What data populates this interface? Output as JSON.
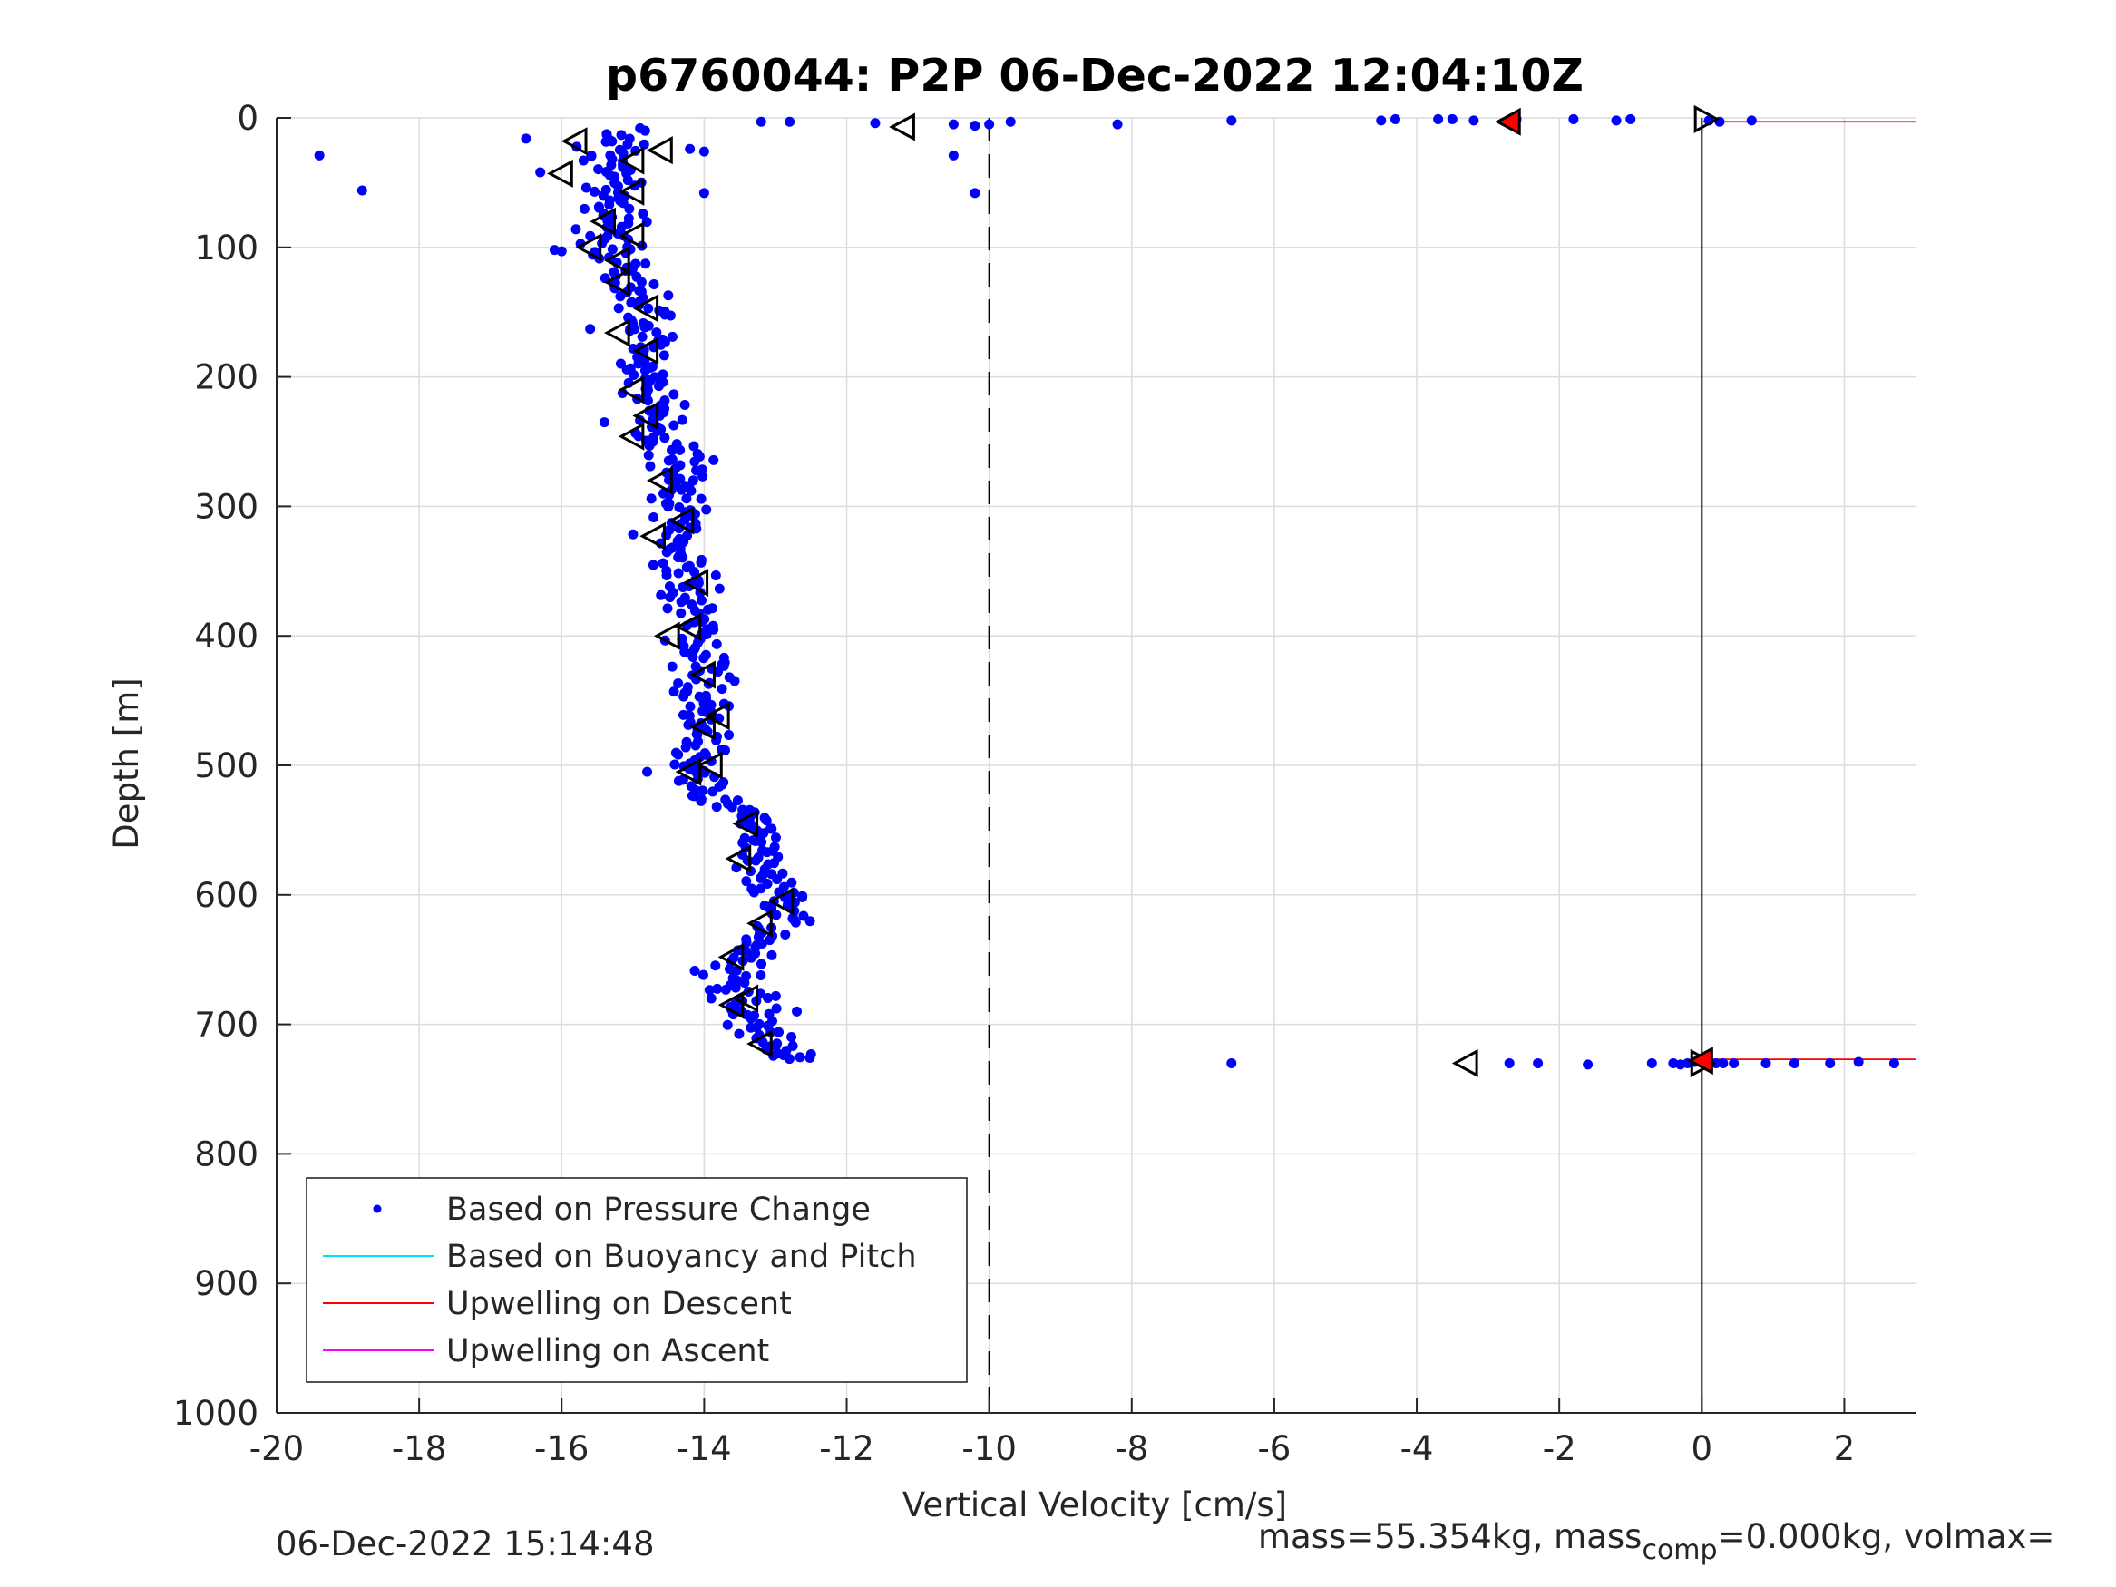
{
  "chart_data": {
    "type": "scatter",
    "title": "p6760044: P2P 06-Dec-2022 12:04:10Z",
    "xlabel": "Vertical Velocity [cm/s]",
    "ylabel": "Depth [m]",
    "xlim": [
      -20,
      3
    ],
    "ylim": [
      0,
      1000
    ],
    "y_reversed": true,
    "grid": true,
    "x_ticks": [
      -20,
      -18,
      -16,
      -14,
      -12,
      -10,
      -8,
      -6,
      -4,
      -2,
      0,
      2
    ],
    "y_ticks": [
      0,
      100,
      200,
      300,
      400,
      500,
      600,
      700,
      800,
      900,
      1000
    ],
    "legend_position": "bottom-left",
    "legend": [
      {
        "label": "Based on Pressure Change",
        "style": "dot",
        "color": "#0000ff"
      },
      {
        "label": "Based on Buoyancy and Pitch",
        "style": "line",
        "color": "#00e5ff"
      },
      {
        "label": "Upwelling on Descent",
        "style": "line",
        "color": "#ff0000"
      },
      {
        "label": "Upwelling on Ascent",
        "style": "line",
        "color": "#ff00ff"
      }
    ],
    "reference_lines": [
      {
        "x": -10,
        "style": "dashed",
        "color": "#000000"
      },
      {
        "x": 0,
        "style": "solid",
        "color": "#000000"
      }
    ],
    "upwelling_on_descent": [
      {
        "depth": 3,
        "x_from": 0,
        "x_to": 3
      },
      {
        "depth": 727,
        "x_from": 0,
        "x_to": 3
      }
    ],
    "pressure_profile": {
      "name": "Based on Pressure Change",
      "color": "#0000ff",
      "anchors": [
        [
          10,
          -15.1
        ],
        [
          20,
          -15.2
        ],
        [
          40,
          -15.3
        ],
        [
          60,
          -15.2
        ],
        [
          80,
          -15.3
        ],
        [
          100,
          -15.2
        ],
        [
          120,
          -15.1
        ],
        [
          140,
          -14.8
        ],
        [
          160,
          -14.8
        ],
        [
          180,
          -14.7
        ],
        [
          200,
          -14.8
        ],
        [
          220,
          -14.8
        ],
        [
          240,
          -14.8
        ],
        [
          260,
          -14.3
        ],
        [
          280,
          -14.4
        ],
        [
          300,
          -14.3
        ],
        [
          320,
          -14.5
        ],
        [
          340,
          -14.5
        ],
        [
          360,
          -14.2
        ],
        [
          380,
          -14.1
        ],
        [
          400,
          -14.1
        ],
        [
          420,
          -13.9
        ],
        [
          440,
          -14.0
        ],
        [
          460,
          -14.0
        ],
        [
          480,
          -14.0
        ],
        [
          500,
          -14.1
        ],
        [
          520,
          -13.9
        ],
        [
          540,
          -13.3
        ],
        [
          560,
          -13.4
        ],
        [
          580,
          -13.1
        ],
        [
          600,
          -12.9
        ],
        [
          620,
          -13.0
        ],
        [
          640,
          -13.4
        ],
        [
          660,
          -13.6
        ],
        [
          680,
          -13.4
        ],
        [
          700,
          -13.3
        ],
        [
          715,
          -13.0
        ],
        [
          728,
          -12.8
        ]
      ],
      "scatter_width": 0.3,
      "sample_count": 560,
      "outliers": [
        {
          "x": -19.4,
          "y": 29
        },
        {
          "x": -18.8,
          "y": 56
        },
        {
          "x": -16.5,
          "y": 16
        },
        {
          "x": -16.3,
          "y": 42
        },
        {
          "x": -16.1,
          "y": 102
        },
        {
          "x": -16.0,
          "y": 103
        },
        {
          "x": -15.8,
          "y": 86
        },
        {
          "x": -15.6,
          "y": 163
        },
        {
          "x": -15.4,
          "y": 235
        },
        {
          "x": -14.8,
          "y": 505
        },
        {
          "x": -14.0,
          "y": 58
        },
        {
          "x": -13.9,
          "y": 680
        },
        {
          "x": -13.3,
          "y": 598
        },
        {
          "x": -12.7,
          "y": 690
        },
        {
          "x": -12.5,
          "y": 723
        },
        {
          "x": -14.9,
          "y": 8
        },
        {
          "x": -14.2,
          "y": 24
        },
        {
          "x": -14.0,
          "y": 26
        },
        {
          "x": -10.5,
          "y": 29
        },
        {
          "x": -10.2,
          "y": 58
        }
      ],
      "surface_points": [
        {
          "x": -13.2,
          "y": 3
        },
        {
          "x": -12.8,
          "y": 3
        },
        {
          "x": -11.6,
          "y": 4
        },
        {
          "x": -10.5,
          "y": 5
        },
        {
          "x": -10.2,
          "y": 6
        },
        {
          "x": -10.0,
          "y": 5
        },
        {
          "x": -9.7,
          "y": 3
        },
        {
          "x": -8.2,
          "y": 5
        },
        {
          "x": -6.6,
          "y": 2
        },
        {
          "x": -4.5,
          "y": 2
        },
        {
          "x": -4.3,
          "y": 1
        },
        {
          "x": -3.7,
          "y": 1
        },
        {
          "x": -3.5,
          "y": 1
        },
        {
          "x": -3.2,
          "y": 2
        },
        {
          "x": -2.6,
          "y": 1
        },
        {
          "x": -1.8,
          "y": 1
        },
        {
          "x": -1.2,
          "y": 2
        },
        {
          "x": -1.0,
          "y": 1
        },
        {
          "x": 0.1,
          "y": 2
        },
        {
          "x": 0.25,
          "y": 3
        },
        {
          "x": 0.7,
          "y": 2
        }
      ],
      "bottom_points": [
        {
          "x": -6.6,
          "y": 730
        },
        {
          "x": -2.7,
          "y": 730
        },
        {
          "x": -2.3,
          "y": 730
        },
        {
          "x": -1.6,
          "y": 731
        },
        {
          "x": -0.7,
          "y": 730
        },
        {
          "x": -0.4,
          "y": 730
        },
        {
          "x": -0.3,
          "y": 731
        },
        {
          "x": -0.2,
          "y": 730
        },
        {
          "x": -0.1,
          "y": 729
        },
        {
          "x": 0.1,
          "y": 731
        },
        {
          "x": 0.2,
          "y": 730
        },
        {
          "x": 0.3,
          "y": 730
        },
        {
          "x": 0.45,
          "y": 730
        },
        {
          "x": 0.9,
          "y": 730
        },
        {
          "x": 1.3,
          "y": 730
        },
        {
          "x": 1.8,
          "y": 730
        },
        {
          "x": 2.2,
          "y": 729
        },
        {
          "x": 2.7,
          "y": 730
        }
      ]
    },
    "descent_markers": [
      {
        "x": -15.8,
        "y": 18
      },
      {
        "x": -14.6,
        "y": 25
      },
      {
        "x": -15.0,
        "y": 33
      },
      {
        "x": -16.0,
        "y": 43
      },
      {
        "x": -15.0,
        "y": 57
      },
      {
        "x": -15.4,
        "y": 80
      },
      {
        "x": -15.0,
        "y": 91
      },
      {
        "x": -15.6,
        "y": 100
      },
      {
        "x": -15.2,
        "y": 110
      },
      {
        "x": -15.2,
        "y": 127
      },
      {
        "x": -14.8,
        "y": 147
      },
      {
        "x": -15.2,
        "y": 166
      },
      {
        "x": -14.8,
        "y": 180
      },
      {
        "x": -15.0,
        "y": 210
      },
      {
        "x": -14.8,
        "y": 230
      },
      {
        "x": -15.0,
        "y": 246
      },
      {
        "x": -14.6,
        "y": 280
      },
      {
        "x": -14.3,
        "y": 311
      },
      {
        "x": -14.7,
        "y": 323
      },
      {
        "x": -14.1,
        "y": 359
      },
      {
        "x": -14.2,
        "y": 393
      },
      {
        "x": -14.5,
        "y": 400
      },
      {
        "x": -14.0,
        "y": 430
      },
      {
        "x": -14.0,
        "y": 470
      },
      {
        "x": -13.8,
        "y": 462
      },
      {
        "x": -14.2,
        "y": 505
      },
      {
        "x": -13.9,
        "y": 500
      },
      {
        "x": -13.4,
        "y": 545
      },
      {
        "x": -13.5,
        "y": 572
      },
      {
        "x": -12.9,
        "y": 605
      },
      {
        "x": -13.2,
        "y": 622
      },
      {
        "x": -13.6,
        "y": 648
      },
      {
        "x": -13.4,
        "y": 680
      },
      {
        "x": -13.6,
        "y": 685
      },
      {
        "x": -13.2,
        "y": 715
      },
      {
        "x": -11.2,
        "y": 7
      },
      {
        "x": -3.3,
        "y": 730
      }
    ],
    "red_descent_markers": [
      {
        "x": -2.7,
        "y": 3
      },
      {
        "x": 0.0,
        "y": 728
      }
    ],
    "right_markers": [
      {
        "x": 0.05,
        "y": 1
      },
      {
        "x": 0.0,
        "y": 730
      }
    ],
    "footer_left": "06-Dec-2022 15:14:48",
    "footer_right_main": "mass=55.354kg, mass",
    "footer_right_sub": "comp",
    "footer_right_tail": "=0.000kg, volmax="
  }
}
